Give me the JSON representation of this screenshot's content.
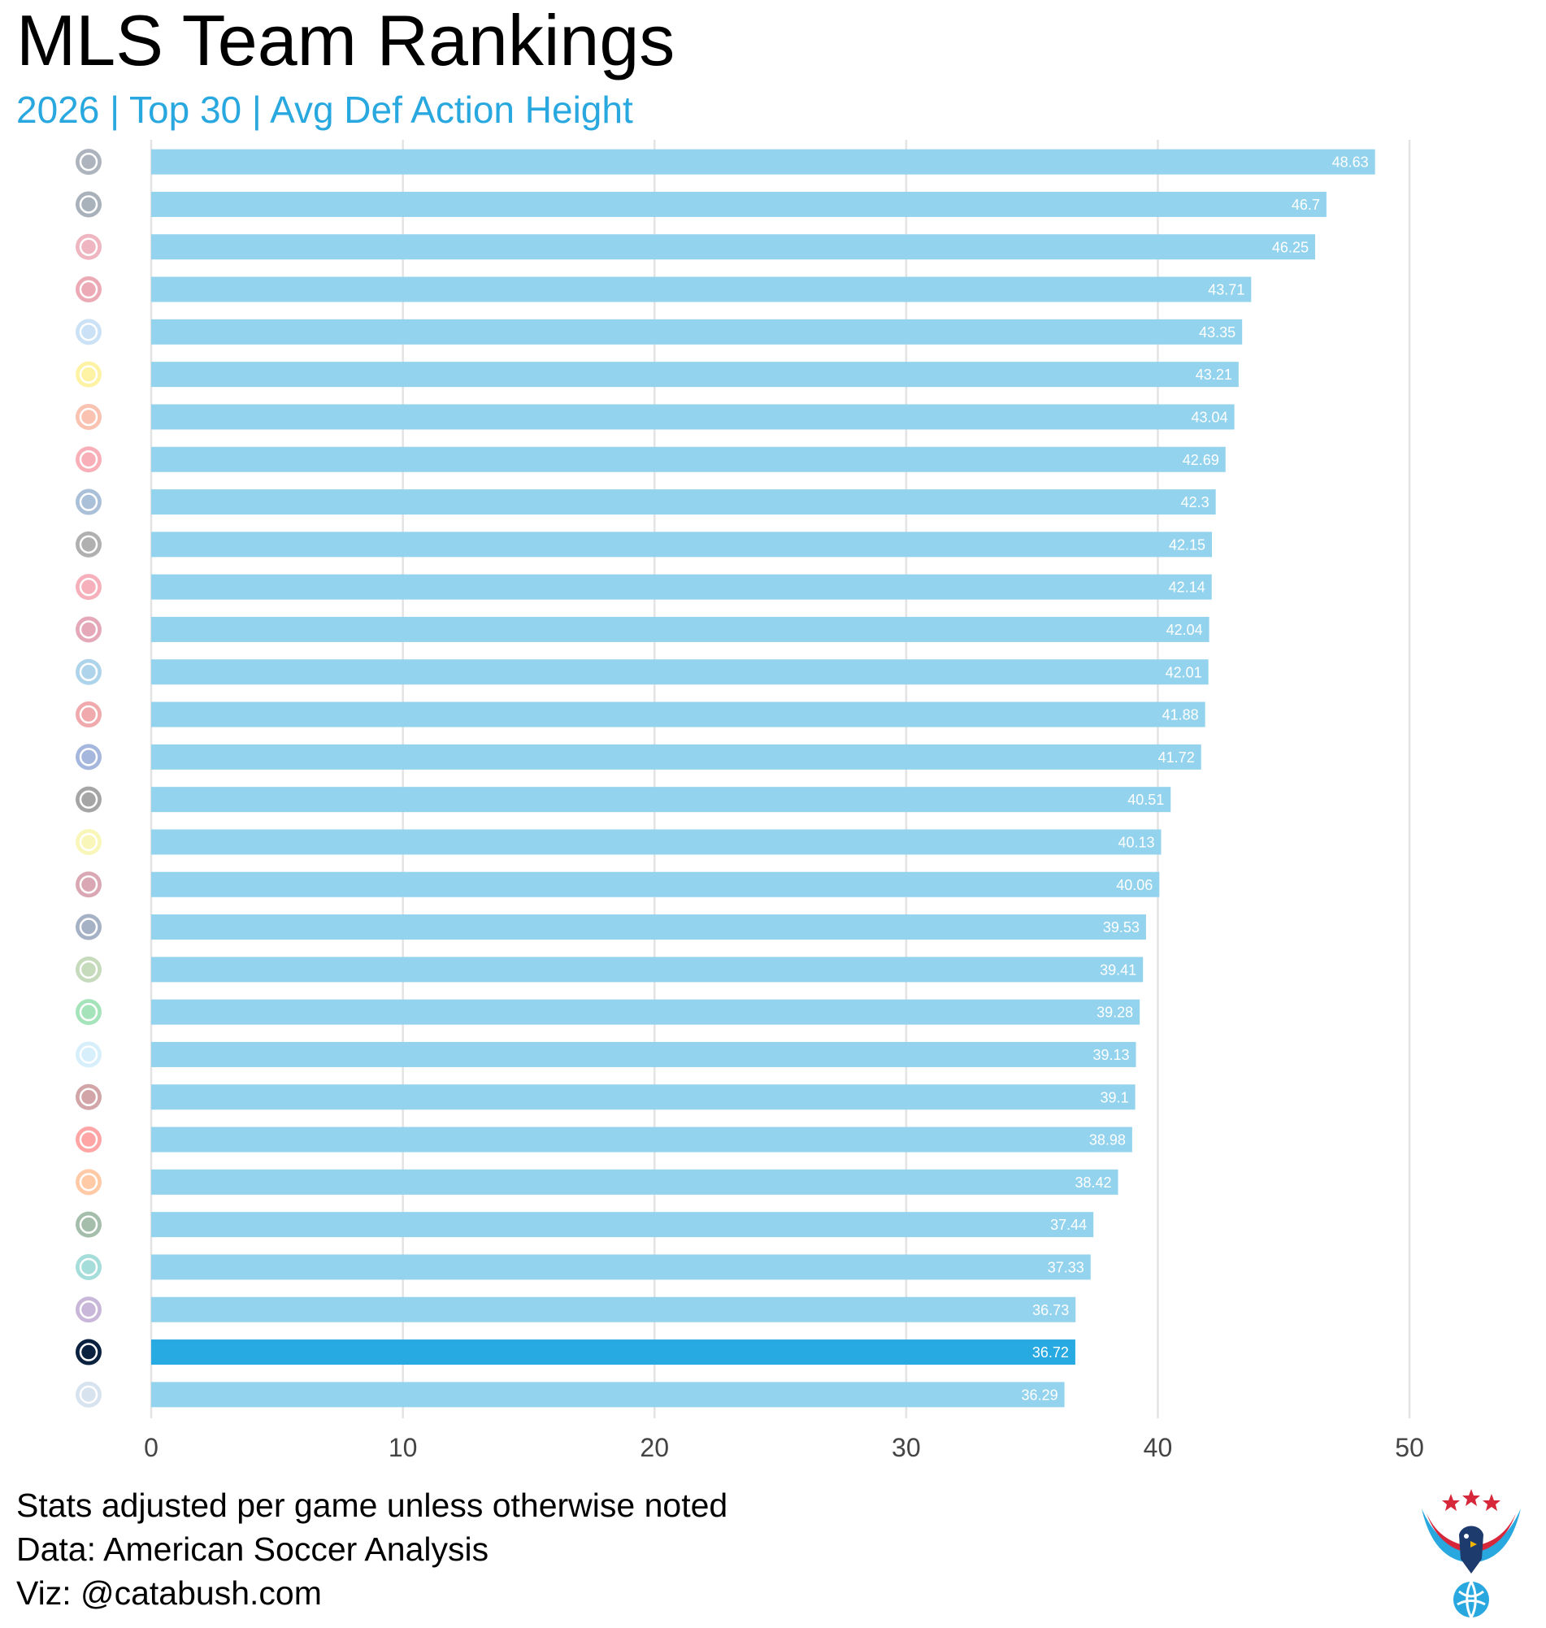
{
  "header": {
    "title": "MLS Team Rankings",
    "subtitle": "2026 | Top 30 | Avg Def Action Height"
  },
  "footer": {
    "lines": [
      "Stats adjusted per game unless otherwise noted",
      "Data: American Soccer Analysis",
      "Viz: @catabush.com"
    ]
  },
  "colors": {
    "bar": "#94d3ee",
    "bar_highlight": "#27a9e1",
    "subtitle": "#29a8e0",
    "gridline": "#e3e3e3",
    "value_label": "#ffffff",
    "logo_red": "#d6283a",
    "logo_blue": "#29a8e0"
  },
  "chart_data": {
    "type": "bar",
    "orientation": "horizontal",
    "title": "MLS Team Rankings",
    "subtitle": "2026 | Top 30 | Avg Def Action Height",
    "xlabel": "",
    "ylabel": "",
    "xlim": [
      0,
      52
    ],
    "xticks": [
      0,
      10,
      20,
      30,
      40,
      50
    ],
    "grid": true,
    "legend": "none",
    "categories": [
      "philadelphia-union-logo",
      "vancouver-whitecaps-logo",
      "st-louis-city-logo",
      "toronto-fc-logo",
      "nycfc-logo",
      "columbus-crew-logo",
      "fc-cincinnati-logo",
      "ny-red-bulls-logo",
      "san-jose-earthquakes-logo",
      "inter-miami-logo",
      "fc-dallas-logo",
      "real-salt-lake-logo",
      "charlotte-fc-logo",
      "dc-united-logo",
      "cf-montreal-logo",
      "lafc-logo",
      "nashville-sc-logo",
      "colorado-rapids-logo",
      "la-galaxy-logo",
      "seattle-sounders-logo",
      "austin-fc-logo",
      "minnesota-united-logo",
      "atlanta-united-logo",
      "chicago-fire-logo",
      "houston-dynamo-logo",
      "portland-timbers-logo",
      "san-diego-fc-logo",
      "orlando-city-logo",
      "new-england-revolution-logo",
      "sporting-kc-logo"
    ],
    "values": [
      48.63,
      46.7,
      46.25,
      43.71,
      43.35,
      43.21,
      43.04,
      42.69,
      42.3,
      42.15,
      42.14,
      42.04,
      42.01,
      41.88,
      41.72,
      40.51,
      40.13,
      40.06,
      39.53,
      39.41,
      39.28,
      39.13,
      39.1,
      38.98,
      38.42,
      37.44,
      37.33,
      36.73,
      36.72,
      36.29
    ],
    "value_labels": [
      "48.63",
      "46.7",
      "46.25",
      "43.71",
      "43.35",
      "43.21",
      "43.04",
      "42.69",
      "42.3",
      "42.15",
      "42.14",
      "42.04",
      "42.01",
      "41.88",
      "41.72",
      "40.51",
      "40.13",
      "40.06",
      "39.53",
      "39.41",
      "39.28",
      "39.13",
      "39.1",
      "38.98",
      "38.42",
      "37.44",
      "37.33",
      "36.73",
      "36.72",
      "36.29"
    ],
    "highlight_index": 28,
    "logo_colors": [
      "#1b2b47",
      "#0c2340",
      "#d22f4c",
      "#c8102e",
      "#6cace4",
      "#fedd00",
      "#f05323",
      "#ed1e36",
      "#0d4c92",
      "#231f20",
      "#e81f3e",
      "#b30838",
      "#1a85c8",
      "#d61018",
      "#0033a1",
      "#000000",
      "#ece83a",
      "#960a2c",
      "#00245d",
      "#5d9741",
      "#00b140",
      "#8cd2f4",
      "#80000a",
      "#ff0000",
      "#ff6b00",
      "#004812",
      "#00a19b",
      "#633492",
      "#0a2240",
      "#91b0d5"
    ]
  }
}
